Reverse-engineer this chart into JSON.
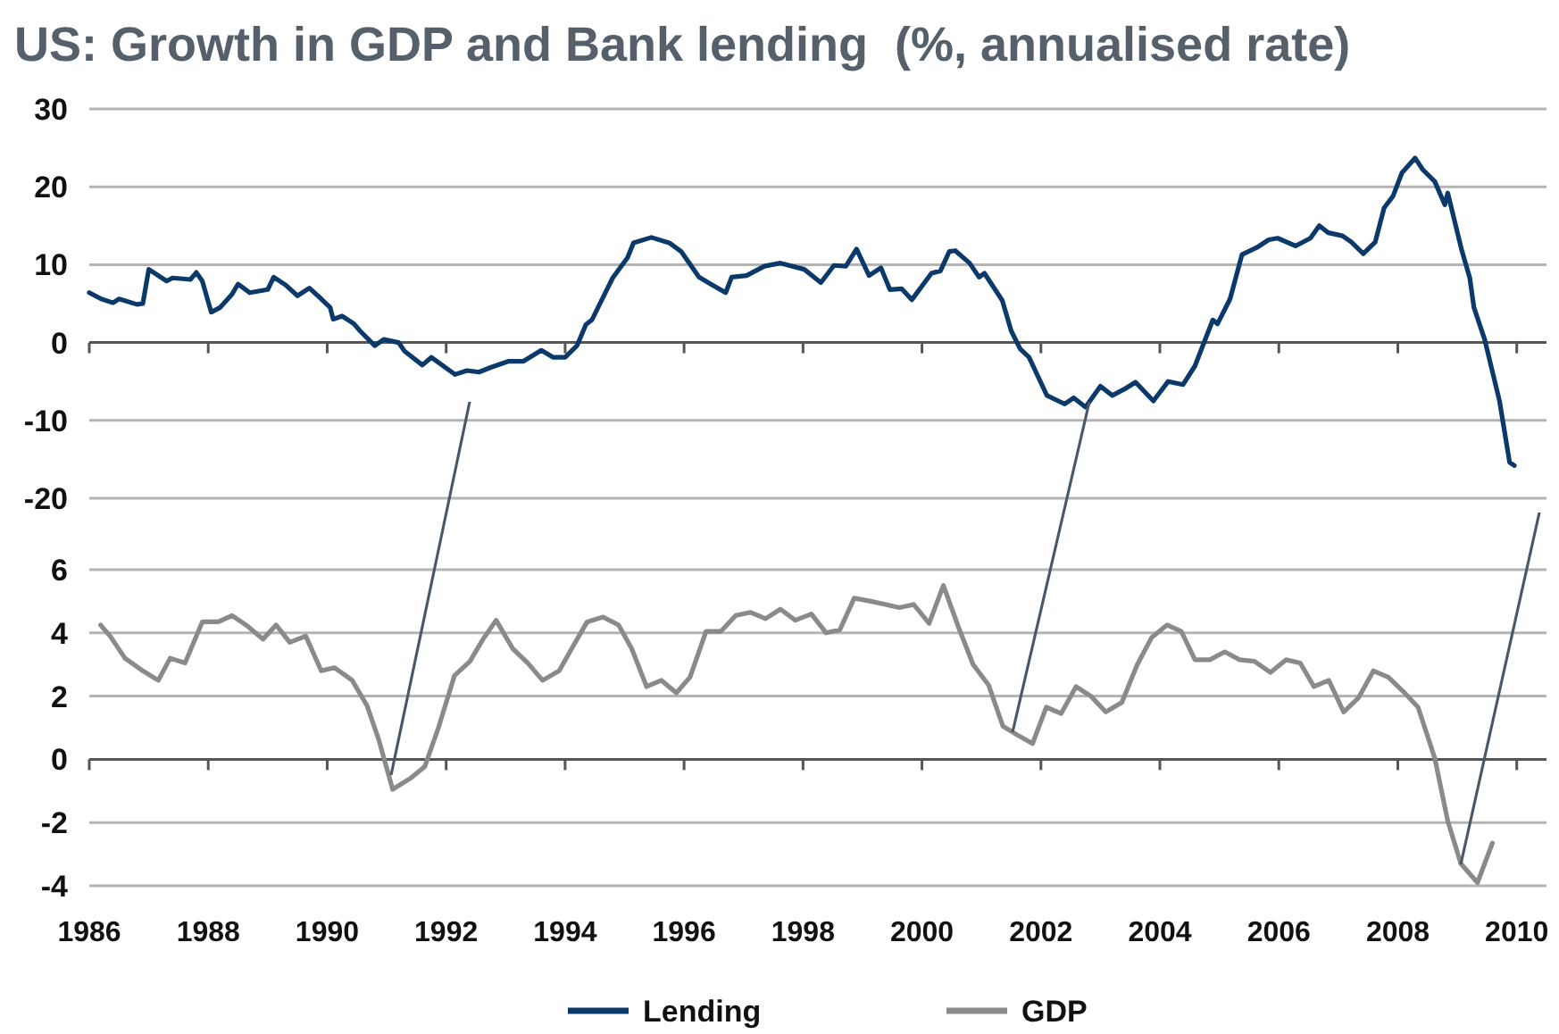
{
  "chart_data": [
    {
      "type": "line",
      "title": "US: Growth in GDP and Bank lending  (%, annualised rate)",
      "xlim": [
        1986,
        2010.5
      ],
      "xticks": [
        1986,
        1988,
        1990,
        1992,
        1994,
        1996,
        1998,
        2000,
        2002,
        2004,
        2006,
        2008,
        2010
      ],
      "ylim": [
        -20,
        30
      ],
      "yticks": [
        -20,
        -10,
        0,
        10,
        20,
        30
      ],
      "grid": "y",
      "legend": "bottom",
      "tick_labels": "y",
      "marker": "none",
      "line_style": "solid",
      "series": [
        {
          "name": "Lending",
          "color": "#0b3a6a",
          "x": [
            1986.0,
            1986.2,
            1986.4,
            1986.5,
            1986.8,
            1986.9,
            1987.0,
            1987.3,
            1987.4,
            1987.7,
            1987.8,
            1987.9,
            1988.05,
            1988.2,
            1988.4,
            1988.5,
            1988.7,
            1989.0,
            1989.1,
            1989.3,
            1989.5,
            1989.7,
            1989.9,
            1990.05,
            1990.1,
            1990.25,
            1990.45,
            1990.55,
            1990.8,
            1990.95,
            1991.2,
            1991.3,
            1991.6,
            1991.75,
            1992.15,
            1992.35,
            1992.55,
            1992.75,
            1993.05,
            1993.3,
            1993.6,
            1993.8,
            1994.0,
            1994.2,
            1994.35,
            1994.45,
            1994.65,
            1994.8,
            1995.05,
            1995.15,
            1995.45,
            1995.75,
            1995.95,
            1996.25,
            1996.45,
            1996.7,
            1996.8,
            1997.05,
            1997.35,
            1997.62,
            1998.02,
            1998.3,
            1998.52,
            1998.72,
            1998.9,
            1999.11,
            1999.31,
            1999.46,
            1999.66,
            1999.83,
            2000.16,
            2000.31,
            2000.46,
            2000.56,
            2000.8,
            2000.96,
            2001.05,
            2001.35,
            2001.5,
            2001.65,
            2001.8,
            2002.1,
            2002.4,
            2002.55,
            2002.75,
            2003.0,
            2003.2,
            2003.4,
            2003.59,
            2003.89,
            2004.14,
            2004.39,
            2004.59,
            2004.89,
            2004.97,
            2005.18,
            2005.38,
            2005.63,
            2005.83,
            2005.98,
            2006.28,
            2006.53,
            2006.68,
            2006.83,
            2007.07,
            2007.22,
            2007.42,
            2007.62,
            2007.77,
            2007.92,
            2008.07,
            2008.29,
            2008.42,
            2008.62,
            2008.79,
            2008.84,
            2009.07,
            2009.21,
            2009.28,
            2009.46,
            2009.71,
            2009.88,
            2009.96
          ],
          "values": [
            6.4,
            5.6,
            5.1,
            5.6,
            4.9,
            5,
            9.4,
            7.9,
            8.3,
            8.1,
            9,
            7.9,
            3.9,
            4.5,
            6.2,
            7.5,
            6.4,
            6.8,
            8.4,
            7.4,
            6,
            7,
            5.6,
            4.5,
            3,
            3.4,
            2.4,
            1.5,
            -0.4,
            0.4,
            0,
            -1.1,
            -2.9,
            -1.9,
            -4.1,
            -3.6,
            -3.8,
            -3.2,
            -2.4,
            -2.4,
            -1,
            -1.9,
            -1.9,
            -0.4,
            2.3,
            2.9,
            6,
            8.3,
            10.9,
            12.8,
            13.5,
            12.8,
            11.7,
            8.4,
            7.5,
            6.4,
            8.4,
            8.6,
            9.8,
            10.2,
            9.4,
            7.7,
            9.9,
            9.8,
            12,
            8.6,
            9.6,
            6.8,
            6.9,
            5.5,
            8.9,
            9.2,
            11.7,
            11.8,
            10.2,
            8.4,
            8.9,
            5.4,
            1.5,
            -0.8,
            -1.9,
            -6.8,
            -7.9,
            -7.1,
            -8.3,
            -5.6,
            -6.8,
            -6,
            -5.1,
            -7.5,
            -5,
            -5.4,
            -3,
            2.9,
            2.4,
            5.6,
            11.3,
            12.2,
            13.2,
            13.4,
            12.4,
            13.4,
            15,
            14.1,
            13.7,
            12.9,
            11.4,
            12.9,
            17.3,
            18.8,
            21.8,
            23.7,
            22.2,
            20.7,
            17.7,
            19.2,
            12,
            8.3,
            4.5,
            0.4,
            -7.5,
            -15.4,
            -15.8
          ]
        }
      ]
    },
    {
      "type": "line",
      "xlim": [
        1986,
        2010.5
      ],
      "xticks": [
        1986,
        1988,
        1990,
        1992,
        1994,
        1996,
        1998,
        2000,
        2002,
        2004,
        2006,
        2008,
        2010
      ],
      "ylim": [
        -4,
        6
      ],
      "yticks": [
        -4,
        -2,
        0,
        2,
        4,
        6
      ],
      "grid": "y",
      "legend": "bottom",
      "marker": "none",
      "line_style": "solid",
      "series": [
        {
          "name": "GDP",
          "color": "#8a8a8a",
          "x": [
            1986.19,
            1986.35,
            1986.6,
            1986.9,
            1987.16,
            1987.36,
            1987.61,
            1987.9,
            1988.17,
            1988.4,
            1988.67,
            1988.92,
            1989.14,
            1989.37,
            1989.64,
            1989.9,
            1990.12,
            1990.42,
            1990.67,
            1990.87,
            1991.1,
            1991.4,
            1991.64,
            1991.87,
            1992.14,
            1992.4,
            1992.62,
            1992.84,
            1993.12,
            1993.37,
            1993.62,
            1993.9,
            1994.14,
            1994.37,
            1994.64,
            1994.9,
            1995.12,
            1995.37,
            1995.62,
            1995.87,
            1996.1,
            1996.37,
            1996.62,
            1996.87,
            1997.12,
            1997.37,
            1997.62,
            1997.87,
            1998.14,
            1998.39,
            1998.62,
            1998.86,
            1999.14,
            1999.39,
            1999.62,
            1999.86,
            2000.12,
            2000.36,
            2000.62,
            2000.86,
            2001.12,
            2001.36,
            2001.62,
            2001.86,
            2002.09,
            2002.34,
            2002.59,
            2002.84,
            2003.09,
            2003.36,
            2003.62,
            2003.86,
            2004.12,
            2004.36,
            2004.59,
            2004.84,
            2005.09,
            2005.34,
            2005.59,
            2005.86,
            2006.12,
            2006.36,
            2006.59,
            2006.84,
            2007.09,
            2007.34,
            2007.59,
            2007.84,
            2008.09,
            2008.34,
            2008.62,
            2008.84,
            2009.06,
            2009.34,
            2009.59
          ],
          "values": [
            4.25,
            3.9,
            3.2,
            2.8,
            2.5,
            3.2,
            3.05,
            4.35,
            4.35,
            4.55,
            4.2,
            3.8,
            4.25,
            3.7,
            3.9,
            2.8,
            2.9,
            2.5,
            1.7,
            0.6,
            -0.95,
            -0.6,
            -0.23,
            1,
            2.65,
            3.1,
            3.8,
            4.4,
            3.5,
            3.05,
            2.5,
            2.8,
            3.6,
            4.35,
            4.5,
            4.25,
            3.5,
            2.3,
            2.5,
            2.1,
            2.6,
            4.05,
            4.05,
            4.55,
            4.65,
            4.45,
            4.75,
            4.4,
            4.6,
            4,
            4.1,
            5.1,
            5,
            4.9,
            4.8,
            4.9,
            4.3,
            5.5,
            4.15,
            3,
            2.35,
            1.05,
            0.75,
            0.5,
            1.65,
            1.45,
            2.3,
            2,
            1.5,
            1.8,
            3,
            3.85,
            4.25,
            4.05,
            3.15,
            3.15,
            3.4,
            3.15,
            3.1,
            2.75,
            3.15,
            3.05,
            2.3,
            2.5,
            1.5,
            1.95,
            2.8,
            2.6,
            2.15,
            1.65,
            0.05,
            -1.95,
            -3.3,
            -3.9,
            -2.65
          ]
        }
      ]
    }
  ]
}
